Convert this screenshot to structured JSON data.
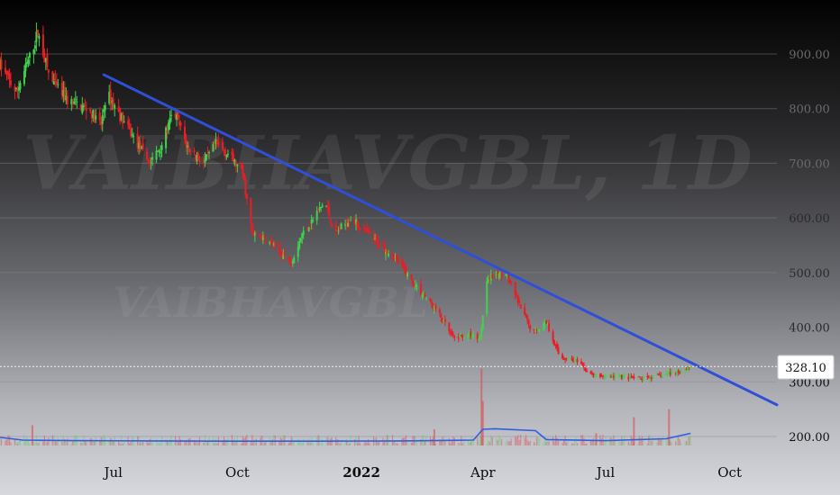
{
  "chart_data": {
    "type": "candlestick",
    "watermark": "VAIBHAVGBL, 1D",
    "watermark_small": "VAIBHAVGBL",
    "y_ticks": [
      "900.00",
      "800.00",
      "700.00",
      "600.00",
      "500.00",
      "400.00",
      "300.00",
      "200.00"
    ],
    "y_tick_values": [
      900,
      800,
      700,
      600,
      500,
      400,
      300,
      200
    ],
    "ylim": [
      180,
      1000
    ],
    "x_ticks": [
      {
        "label": "Jul",
        "date": "2021-07-01",
        "bold": false
      },
      {
        "label": "Oct",
        "date": "2021-10-01",
        "bold": false
      },
      {
        "label": "2022",
        "date": "2022-01-01",
        "bold": true
      },
      {
        "label": "Apr",
        "date": "2022-04-01",
        "bold": false
      },
      {
        "label": "Jul",
        "date": "2022-07-01",
        "bold": false
      },
      {
        "label": "Oct",
        "date": "2022-10-01",
        "bold": false
      }
    ],
    "xlim": [
      "2021-04-08",
      "2022-11-05"
    ],
    "last_price": 328.1,
    "last_price_label": "328.10",
    "trendline": {
      "start": {
        "date": "2021-06-24",
        "price": 862
      },
      "end": {
        "date": "2022-11-05",
        "price": 258
      }
    },
    "price_path": [
      [
        "2021-04-08",
        880
      ],
      [
        "2021-04-20",
        830
      ],
      [
        "2021-05-01",
        900
      ],
      [
        "2021-05-06",
        940
      ],
      [
        "2021-05-15",
        855
      ],
      [
        "2021-05-28",
        815
      ],
      [
        "2021-06-12",
        800
      ],
      [
        "2021-06-22",
        770
      ],
      [
        "2021-06-26",
        830
      ],
      [
        "2021-07-10",
        770
      ],
      [
        "2021-07-28",
        700
      ],
      [
        "2021-08-05",
        730
      ],
      [
        "2021-08-15",
        795
      ],
      [
        "2021-08-25",
        730
      ],
      [
        "2021-09-06",
        700
      ],
      [
        "2021-09-15",
        735
      ],
      [
        "2021-09-25",
        715
      ],
      [
        "2021-10-05",
        680
      ],
      [
        "2021-10-12",
        570
      ],
      [
        "2021-10-22",
        560
      ],
      [
        "2021-11-10",
        520
      ],
      [
        "2021-11-18",
        570
      ],
      [
        "2021-12-05",
        630
      ],
      [
        "2021-12-12",
        570
      ],
      [
        "2021-12-24",
        600
      ],
      [
        "2022-01-10",
        560
      ],
      [
        "2022-01-25",
        530
      ],
      [
        "2022-02-12",
        470
      ],
      [
        "2022-02-26",
        430
      ],
      [
        "2022-03-10",
        380
      ],
      [
        "2022-03-22",
        385
      ],
      [
        "2022-03-30",
        380
      ],
      [
        "2022-04-04",
        490
      ],
      [
        "2022-04-18",
        500
      ],
      [
        "2022-04-28",
        440
      ],
      [
        "2022-05-08",
        390
      ],
      [
        "2022-05-18",
        410
      ],
      [
        "2022-05-28",
        345
      ],
      [
        "2022-06-08",
        340
      ],
      [
        "2022-06-22",
        310
      ],
      [
        "2022-07-10",
        310
      ],
      [
        "2022-07-28",
        305
      ],
      [
        "2022-08-08",
        310
      ],
      [
        "2022-08-25",
        320
      ],
      [
        "2022-09-02",
        328
      ]
    ],
    "volume_spikes": [
      [
        "2022-03-31",
        0.95
      ],
      [
        "2022-04-01",
        0.55
      ],
      [
        "2022-07-22",
        0.35
      ],
      [
        "2022-08-17",
        0.45
      ],
      [
        "2021-05-02",
        0.25
      ],
      [
        "2022-02-24",
        0.2
      ],
      [
        "2022-06-24",
        0.15
      ]
    ],
    "volume_ma_path": [
      [
        "2021-04-08",
        0.3
      ],
      [
        "2021-04-25",
        0.2
      ],
      [
        "2021-06-01",
        0.18
      ],
      [
        "2021-08-01",
        0.17
      ],
      [
        "2021-10-01",
        0.16
      ],
      [
        "2021-12-01",
        0.16
      ],
      [
        "2022-02-01",
        0.17
      ],
      [
        "2022-03-25",
        0.2
      ],
      [
        "2022-04-01",
        0.6
      ],
      [
        "2022-04-10",
        0.62
      ],
      [
        "2022-05-10",
        0.55
      ],
      [
        "2022-05-18",
        0.22
      ],
      [
        "2022-07-01",
        0.18
      ],
      [
        "2022-08-15",
        0.25
      ],
      [
        "2022-09-02",
        0.45
      ]
    ],
    "colors": {
      "up": "#3fd24e",
      "down": "#ec1c24",
      "trendline": "#2f4fd8",
      "volume_ma": "#2f5fe0",
      "grid": "#8a8a8e",
      "axis_text": "#1c1c1c"
    }
  }
}
